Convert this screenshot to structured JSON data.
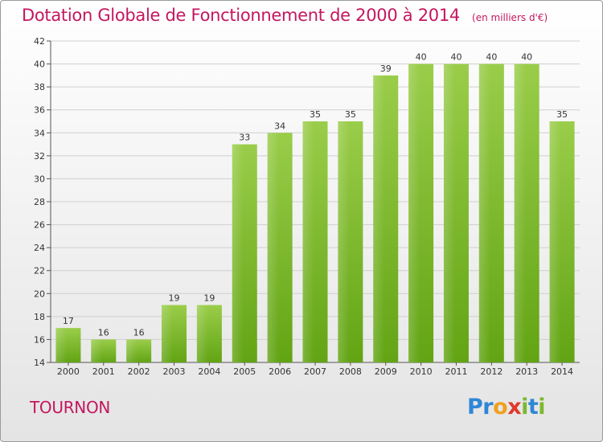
{
  "chart_data": {
    "type": "bar",
    "title": "Dotation Globale de Fonctionnement de 2000 à 2014",
    "unit_label": "(en milliers d'€)",
    "categories": [
      "2000",
      "2001",
      "2002",
      "2003",
      "2004",
      "2005",
      "2006",
      "2007",
      "2008",
      "2009",
      "2010",
      "2011",
      "2012",
      "2013",
      "2014"
    ],
    "values": [
      17,
      16,
      16,
      19,
      19,
      33,
      34,
      35,
      35,
      39,
      40,
      40,
      40,
      40,
      35
    ],
    "ylim": [
      14,
      42
    ],
    "yticks": [
      14,
      16,
      18,
      20,
      22,
      24,
      26,
      28,
      30,
      32,
      34,
      36,
      38,
      40,
      42
    ],
    "grid": true,
    "bar_color_top": "#9acd4a",
    "bar_color_bottom": "#62a414"
  },
  "commune": "TOURNON",
  "logo": {
    "text": "Proxiti",
    "letters": [
      {
        "ch": "P",
        "color": "#2e86d6"
      },
      {
        "ch": "r",
        "color": "#2e86d6"
      },
      {
        "ch": "o",
        "color": "#f0a020"
      },
      {
        "ch": "x",
        "color": "#e03a2a"
      },
      {
        "ch": "i",
        "color": "#7cb82f"
      },
      {
        "ch": "t",
        "color": "#2e86d6"
      },
      {
        "ch": "i",
        "color": "#7cb82f"
      }
    ]
  }
}
